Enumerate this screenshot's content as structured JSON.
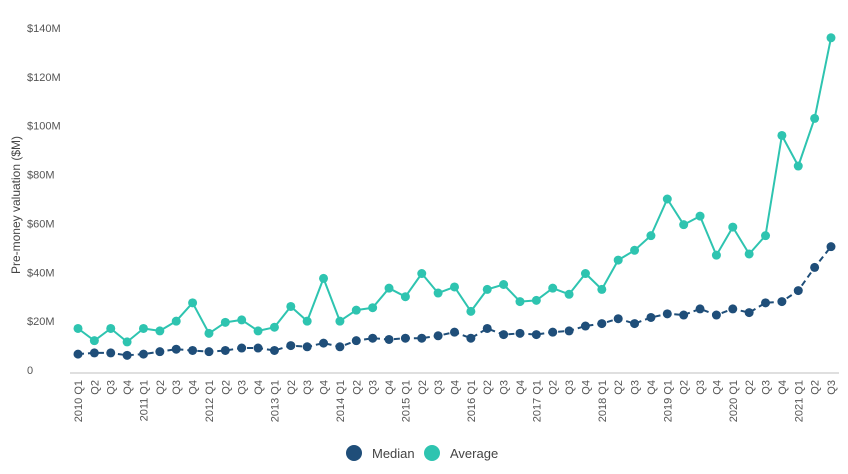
{
  "chart_data": {
    "type": "line",
    "title": "",
    "xlabel": "",
    "ylabel": "Pre-money valuation ($M)",
    "ylim": [
      0,
      140
    ],
    "y_ticks": [
      {
        "value": 0,
        "label": "0"
      },
      {
        "value": 20,
        "label": "$20M"
      },
      {
        "value": 40,
        "label": "$40M"
      },
      {
        "value": 60,
        "label": "$60M"
      },
      {
        "value": 80,
        "label": "$80M"
      },
      {
        "value": 100,
        "label": "$100M"
      },
      {
        "value": 120,
        "label": "$120M"
      },
      {
        "value": 140,
        "label": "$140M"
      }
    ],
    "grid": false,
    "legend_position": "bottom-center",
    "categories": [
      "2010 Q1",
      "Q2",
      "Q3",
      "Q4",
      "2011 Q1",
      "Q2",
      "Q3",
      "Q4",
      "2012 Q1",
      "Q2",
      "Q3",
      "Q4",
      "2013 Q1",
      "Q2",
      "Q3",
      "Q4",
      "2014 Q1",
      "Q2",
      "Q3",
      "Q4",
      "2015 Q1",
      "Q2",
      "Q3",
      "Q4",
      "2016 Q1",
      "Q2",
      "Q3",
      "Q4",
      "2017 Q1",
      "Q2",
      "Q3",
      "Q4",
      "2018 Q1",
      "Q2",
      "Q3",
      "Q4",
      "2019 Q1",
      "Q2",
      "Q3",
      "Q4",
      "2020 Q1",
      "Q2",
      "Q3",
      "Q4",
      "2021 Q1",
      "Q2",
      "Q3"
    ],
    "series": [
      {
        "name": "Median",
        "color": "#1f4e79",
        "values": [
          6.5,
          7,
          7,
          6,
          6.5,
          7.5,
          8.5,
          8,
          7.5,
          8,
          9,
          9,
          8,
          10,
          9.5,
          11,
          9.5,
          12,
          13,
          12.5,
          13,
          13,
          14,
          15.5,
          13,
          17,
          14.5,
          15,
          14.5,
          15.5,
          16,
          18,
          19,
          21,
          19,
          21.5,
          23,
          22.5,
          25,
          22.5,
          25,
          23.5,
          27.5,
          28,
          32.5,
          42,
          50.5
        ]
      },
      {
        "name": "Average",
        "color": "#2ec4b0",
        "values": [
          17,
          12,
          17,
          11.5,
          17,
          16,
          20,
          27.5,
          15,
          19.5,
          20.5,
          16,
          17.5,
          26,
          20,
          37.5,
          20,
          24.5,
          25.5,
          33.5,
          30,
          39.5,
          31.5,
          34,
          24,
          33,
          35,
          28,
          28.5,
          33.5,
          31,
          39.5,
          33,
          45,
          49,
          55,
          70,
          59.5,
          63,
          47,
          58.5,
          47.5,
          55,
          96,
          83.5,
          103,
          136
        ]
      }
    ]
  }
}
